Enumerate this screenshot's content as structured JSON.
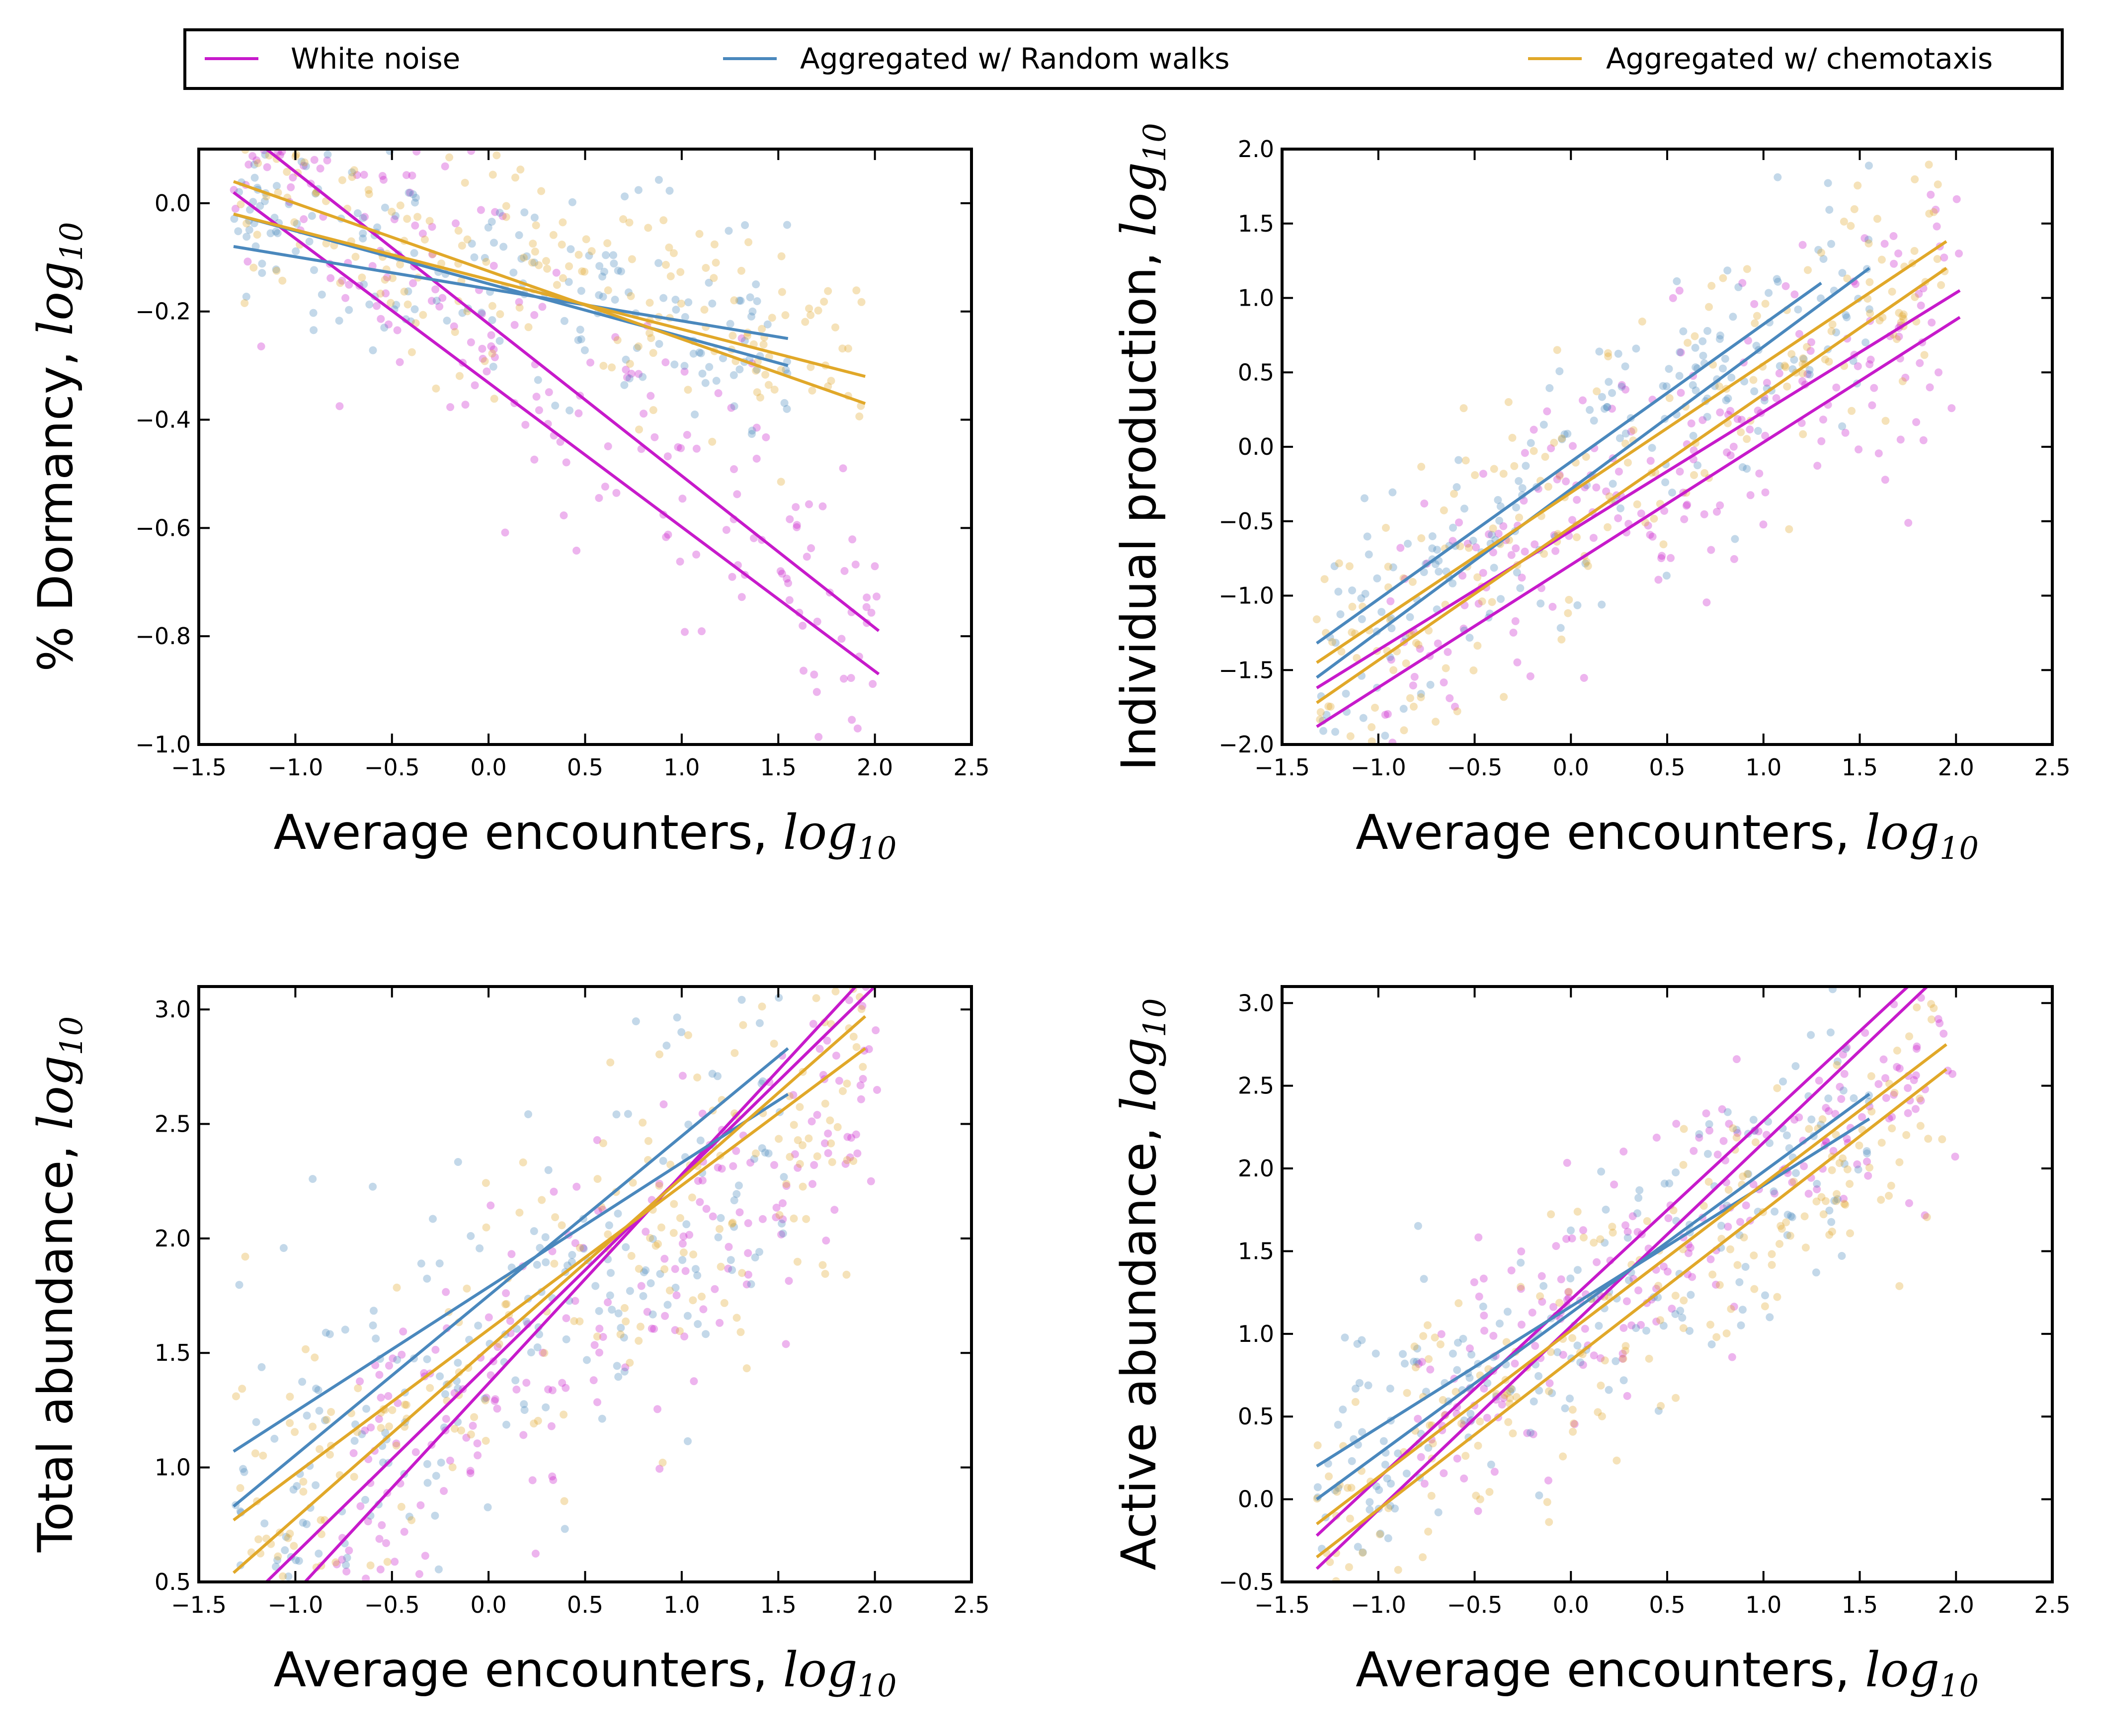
{
  "legend": {
    "placement": "top, above all panels",
    "entries": [
      {
        "label": "White noise",
        "color": "#c71acb"
      },
      {
        "label": "Aggregated w/ Random walks",
        "color": "#4a88bd"
      },
      {
        "label": "Aggregated w/ chemotaxis",
        "color": "#e1a829"
      }
    ]
  },
  "chart_data": [
    {
      "type": "scatter",
      "xlabel": "Average encounters, ",
      "xlabel_math": "log",
      "xlabel_sub": "10",
      "ylabel": "% Dormancy, ",
      "ylabel_math": "log",
      "ylabel_sub": "10",
      "xlim": [
        -1.5,
        2.5
      ],
      "ylim": [
        -1.0,
        0.1
      ],
      "xticks": [
        "−1.5",
        "−1.0",
        "−0.5",
        "0.0",
        "0.5",
        "1.0",
        "1.5",
        "2.0",
        "2.5"
      ],
      "yticks": [
        "−1.0",
        "−0.8",
        "−0.6",
        "−0.4",
        "−0.2",
        "0.0"
      ],
      "ytick_values": [
        -1.0,
        -0.8,
        -0.6,
        -0.4,
        -0.2,
        0.0
      ],
      "grid": false,
      "series": [
        {
          "name": "White noise",
          "color": "#c71acb",
          "lines": [
            [
              -1.32,
              0.02,
              2.02,
              -0.87
            ],
            [
              -1.15,
              0.1,
              2.02,
              -0.79
            ]
          ],
          "cloud": {
            "seed": 11,
            "n": 190,
            "x": [
              -1.32,
              2.02
            ],
            "slope": -0.27,
            "intercept": -0.23,
            "spread": 0.14,
            "ylim": [
              -1.0,
              0.1
            ]
          }
        },
        {
          "name": "Aggregated w/ Random walks",
          "color": "#4a88bd",
          "lines": [
            [
              -1.32,
              -0.02,
              1.55,
              -0.3
            ],
            [
              -1.32,
              -0.08,
              1.55,
              -0.25
            ]
          ],
          "cloud": {
            "seed": 23,
            "n": 190,
            "x": [
              -1.32,
              1.55
            ],
            "slope": -0.08,
            "intercept": -0.12,
            "spread": 0.09,
            "ylim": [
              -1.0,
              0.1
            ]
          }
        },
        {
          "name": "Aggregated w/ chemotaxis",
          "color": "#e1a829",
          "lines": [
            [
              -1.32,
              0.04,
              1.95,
              -0.37
            ],
            [
              -1.32,
              -0.02,
              1.95,
              -0.32
            ]
          ],
          "cloud": {
            "seed": 37,
            "n": 190,
            "x": [
              -1.32,
              1.95
            ],
            "slope": -0.1,
            "intercept": -0.12,
            "spread": 0.1,
            "ylim": [
              -1.0,
              0.1
            ]
          }
        }
      ]
    },
    {
      "type": "scatter",
      "xlabel": "Average encounters, ",
      "xlabel_math": "log",
      "xlabel_sub": "10",
      "ylabel": "Individual production, ",
      "ylabel_math": "log",
      "ylabel_sub": "10",
      "xlim": [
        -1.5,
        2.5
      ],
      "ylim": [
        -2.0,
        2.0
      ],
      "xticks": [
        "−1.5",
        "−1.0",
        "−0.5",
        "0.0",
        "0.5",
        "1.0",
        "1.5",
        "2.0",
        "2.5"
      ],
      "yticks": [
        "−2.0",
        "−1.5",
        "−1.0",
        "−0.5",
        "0.0",
        "0.5",
        "1.0",
        "1.5",
        "2.0"
      ],
      "ytick_values": [
        -2.0,
        -1.5,
        -1.0,
        -0.5,
        0.0,
        0.5,
        1.0,
        1.5,
        2.0
      ],
      "grid": false,
      "series": [
        {
          "name": "White noise",
          "color": "#c71acb",
          "lines": [
            [
              -1.32,
              -1.88,
              2.02,
              0.87
            ],
            [
              -1.32,
              -1.62,
              2.02,
              1.05
            ]
          ],
          "cloud": {
            "seed": 41,
            "n": 200,
            "x": [
              -1.0,
              2.02
            ],
            "slope": 0.75,
            "intercept": -0.55,
            "spread": 0.45,
            "ylim": [
              -2.0,
              2.0
            ]
          }
        },
        {
          "name": "Aggregated w/ Random walks",
          "color": "#4a88bd",
          "lines": [
            [
              -1.32,
              -1.55,
              1.55,
              1.2
            ],
            [
              -1.32,
              -1.32,
              1.3,
              1.1
            ]
          ],
          "cloud": {
            "seed": 53,
            "n": 200,
            "x": [
              -1.32,
              1.55
            ],
            "slope": 0.9,
            "intercept": -0.25,
            "spread": 0.4,
            "ylim": [
              -2.0,
              2.0
            ]
          }
        },
        {
          "name": "Aggregated w/ chemotaxis",
          "color": "#e1a829",
          "lines": [
            [
              -1.32,
              -1.72,
              1.95,
              1.2
            ],
            [
              -1.32,
              -1.45,
              1.95,
              1.38
            ]
          ],
          "cloud": {
            "seed": 67,
            "n": 200,
            "x": [
              -1.32,
              1.95
            ],
            "slope": 0.85,
            "intercept": -0.35,
            "spread": 0.4,
            "ylim": [
              -2.0,
              2.0
            ]
          }
        }
      ]
    },
    {
      "type": "scatter",
      "xlabel": "Average encounters, ",
      "xlabel_math": "log",
      "xlabel_sub": "10",
      "ylabel": "Total abundance, ",
      "ylabel_math": "log",
      "ylabel_sub": "10",
      "xlim": [
        -1.5,
        2.5
      ],
      "ylim": [
        0.5,
        3.1
      ],
      "xticks": [
        "−1.5",
        "−1.0",
        "−0.5",
        "0.0",
        "0.5",
        "1.0",
        "1.5",
        "2.0",
        "2.5"
      ],
      "yticks": [
        "0.5",
        "1.0",
        "1.5",
        "2.0",
        "2.5",
        "3.0"
      ],
      "ytick_values": [
        0.5,
        1.0,
        1.5,
        2.0,
        2.5,
        3.0
      ],
      "grid": false,
      "series": [
        {
          "name": "White noise",
          "color": "#c71acb",
          "lines": [
            [
              -1.15,
              0.5,
              2.0,
              3.1
            ],
            [
              -0.95,
              0.5,
              1.9,
              3.1
            ]
          ],
          "cloud": {
            "seed": 71,
            "n": 200,
            "x": [
              -0.8,
              2.02
            ],
            "slope": 0.65,
            "intercept": 1.35,
            "spread": 0.35,
            "ylim": [
              0.5,
              3.1
            ]
          }
        },
        {
          "name": "Aggregated w/ Random walks",
          "color": "#4a88bd",
          "lines": [
            [
              -1.32,
              1.07,
              1.55,
              2.63
            ],
            [
              -1.32,
              0.83,
              1.55,
              2.83
            ]
          ],
          "cloud": {
            "seed": 83,
            "n": 200,
            "x": [
              -1.32,
              1.55
            ],
            "slope": 0.55,
            "intercept": 1.55,
            "spread": 0.4,
            "ylim": [
              0.5,
              3.1
            ]
          }
        },
        {
          "name": "Aggregated w/ chemotaxis",
          "color": "#e1a829",
          "lines": [
            [
              -1.32,
              0.77,
              1.95,
              2.83
            ],
            [
              -1.32,
              0.54,
              1.95,
              2.97
            ]
          ],
          "cloud": {
            "seed": 97,
            "n": 200,
            "x": [
              -1.32,
              1.95
            ],
            "slope": 0.6,
            "intercept": 1.45,
            "spread": 0.4,
            "ylim": [
              0.5,
              3.1
            ]
          }
        }
      ]
    },
    {
      "type": "scatter",
      "xlabel": "Average encounters, ",
      "xlabel_math": "log",
      "xlabel_sub": "10",
      "ylabel": "Active abundance, ",
      "ylabel_math": "log",
      "ylabel_sub": "10",
      "xlim": [
        -1.5,
        2.5
      ],
      "ylim": [
        -0.5,
        3.1
      ],
      "xticks": [
        "−1.5",
        "−1.0",
        "−0.5",
        "0.0",
        "0.5",
        "1.0",
        "1.5",
        "2.0",
        "2.5"
      ],
      "yticks": [
        "−0.5",
        "0.0",
        "0.5",
        "1.0",
        "1.5",
        "2.0",
        "2.5",
        "3.0"
      ],
      "ytick_values": [
        -0.5,
        0.0,
        0.5,
        1.0,
        1.5,
        2.0,
        2.5,
        3.0
      ],
      "grid": false,
      "series": [
        {
          "name": "White noise",
          "color": "#c71acb",
          "lines": [
            [
              -1.32,
              -0.42,
              1.85,
              3.1
            ],
            [
              -1.32,
              -0.22,
              1.75,
              3.1
            ]
          ],
          "cloud": {
            "seed": 101,
            "n": 210,
            "x": [
              -0.8,
              2.02
            ],
            "slope": 0.8,
            "intercept": 1.15,
            "spread": 0.35,
            "ylim": [
              -0.5,
              3.1
            ]
          }
        },
        {
          "name": "Aggregated w/ Random walks",
          "color": "#4a88bd",
          "lines": [
            [
              -1.32,
              0.0,
              1.55,
              2.45
            ],
            [
              -1.32,
              0.2,
              1.55,
              2.3
            ]
          ],
          "cloud": {
            "seed": 113,
            "n": 200,
            "x": [
              -1.32,
              1.55
            ],
            "slope": 0.75,
            "intercept": 1.1,
            "spread": 0.4,
            "ylim": [
              -0.5,
              3.1
            ]
          }
        },
        {
          "name": "Aggregated w/ chemotaxis",
          "color": "#e1a829",
          "lines": [
            [
              -1.32,
              -0.35,
              1.95,
              2.6
            ],
            [
              -1.32,
              -0.15,
              1.95,
              2.75
            ]
          ],
          "cloud": {
            "seed": 127,
            "n": 200,
            "x": [
              -1.32,
              1.95
            ],
            "slope": 0.8,
            "intercept": 0.9,
            "spread": 0.4,
            "ylim": [
              -0.5,
              3.1
            ]
          }
        }
      ]
    }
  ]
}
